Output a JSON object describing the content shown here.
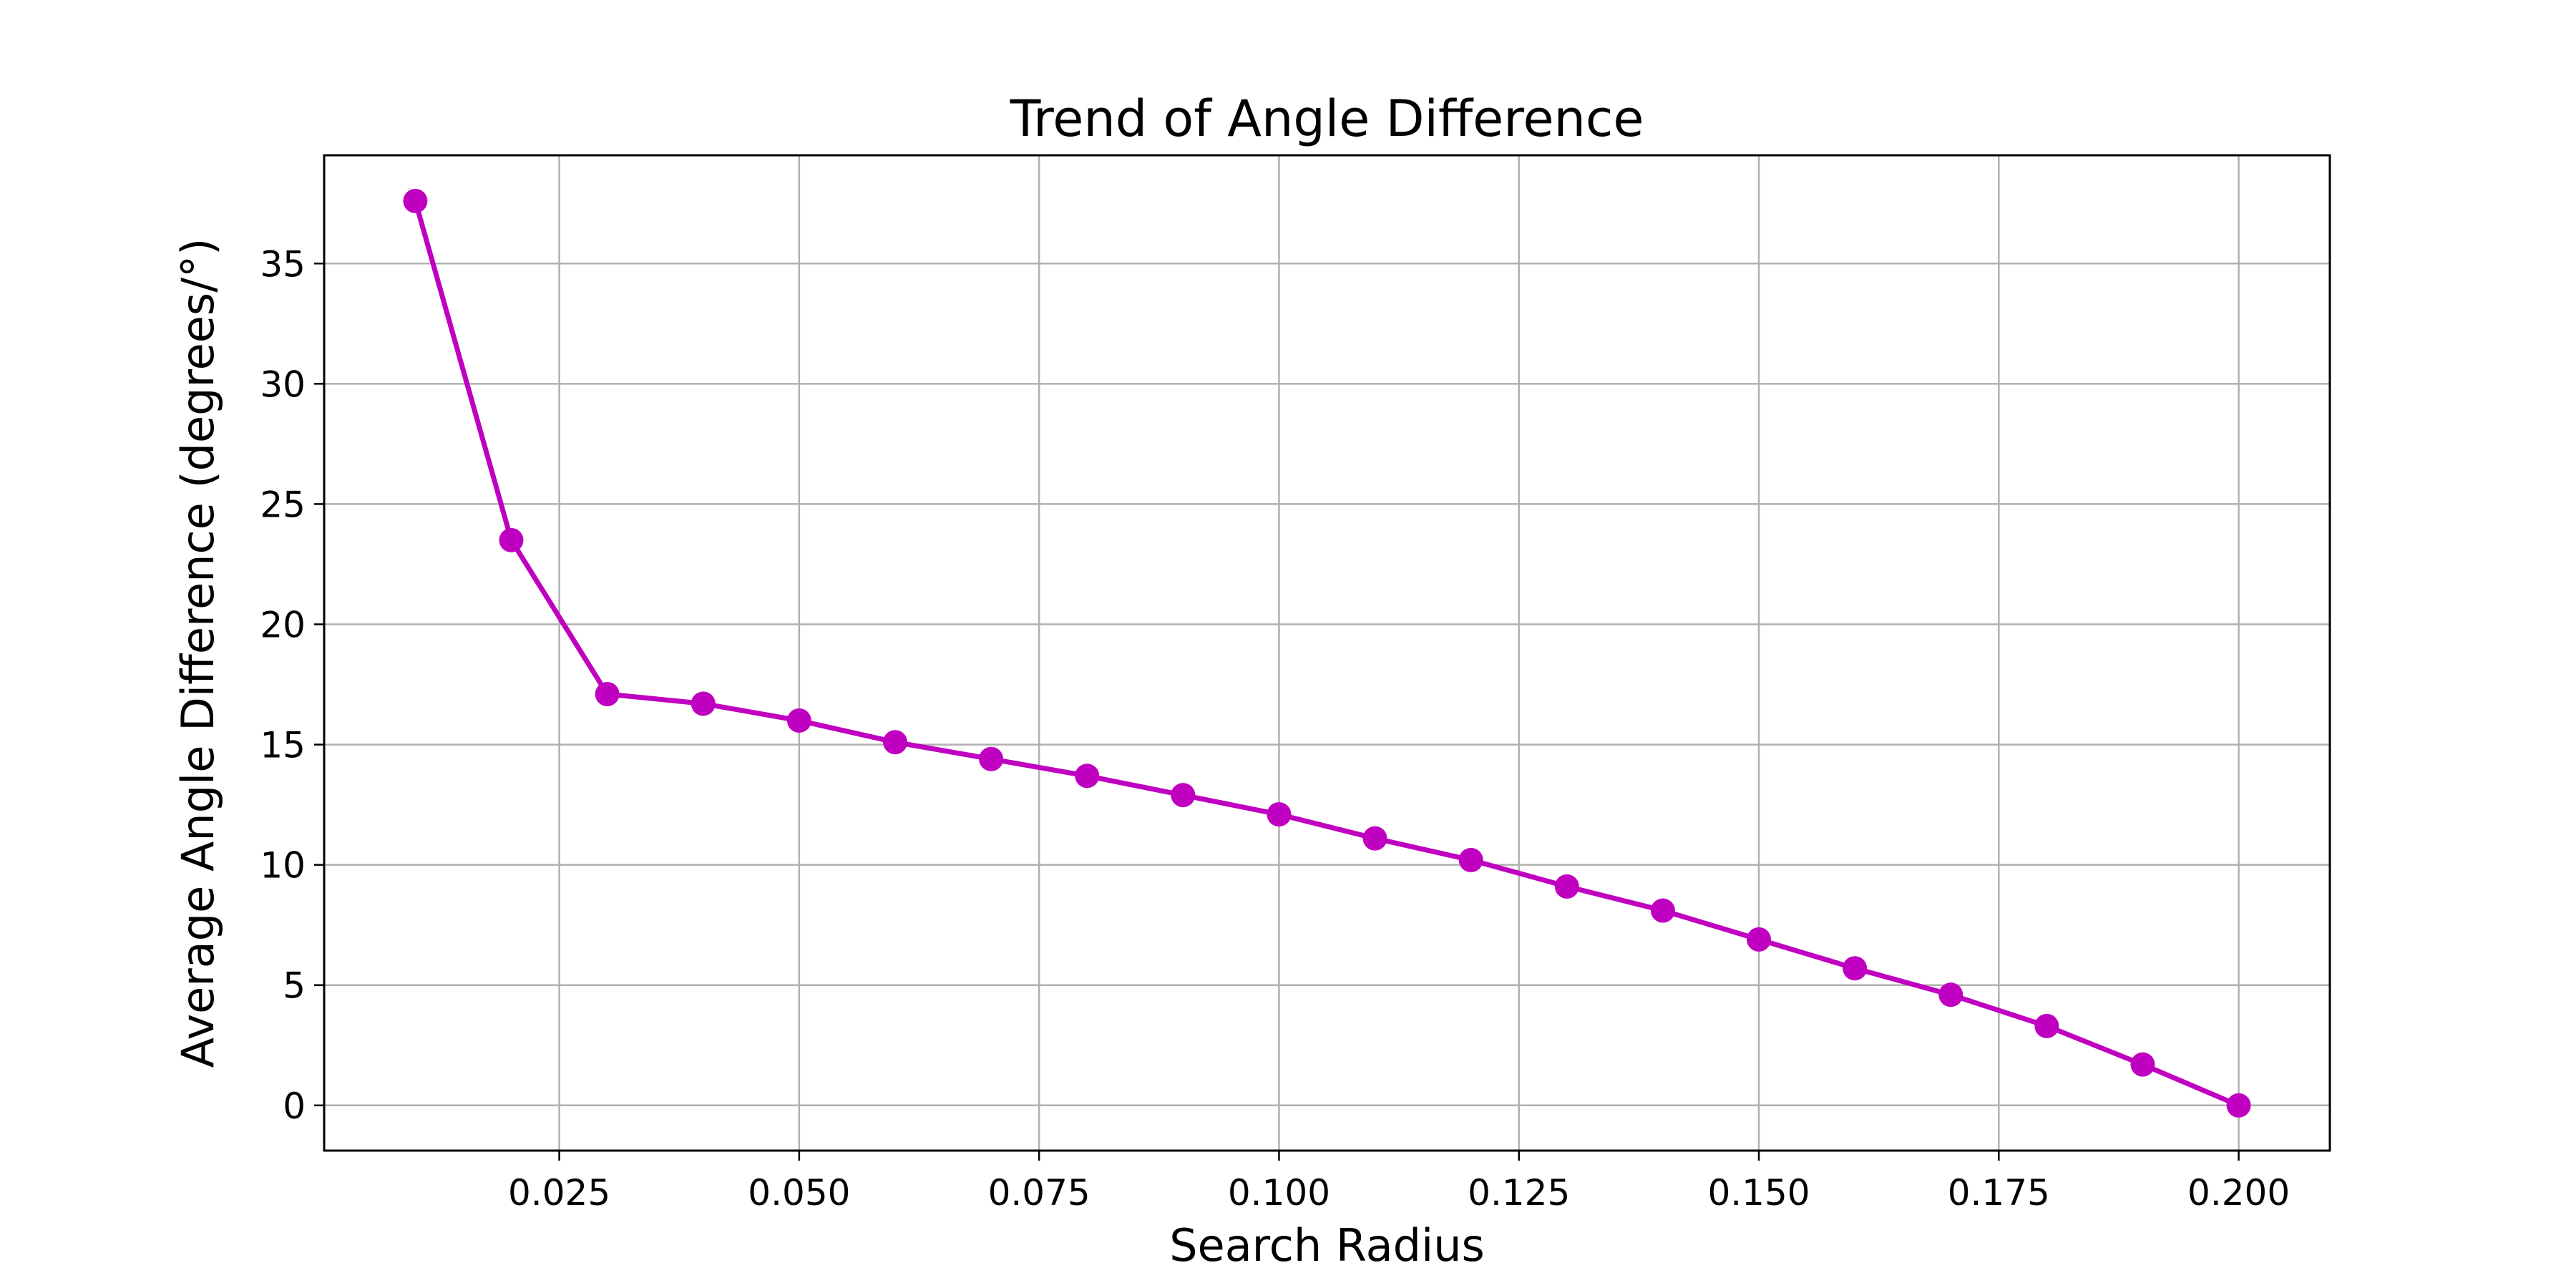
{
  "chart_data": {
    "type": "line",
    "title": "Trend of Angle Difference",
    "xlabel": "Search Radius",
    "ylabel": "Average Angle Difference (degrees/°)",
    "xlim": [
      0.0005,
      0.2095
    ],
    "ylim": [
      -1.88,
      39.5
    ],
    "xticks": [
      0.025,
      0.05,
      0.075,
      0.1,
      0.125,
      0.15,
      0.175,
      0.2
    ],
    "xtick_labels": [
      "0.025",
      "0.050",
      "0.075",
      "0.100",
      "0.125",
      "0.150",
      "0.175",
      "0.200"
    ],
    "yticks": [
      0,
      5,
      10,
      15,
      20,
      25,
      30,
      35
    ],
    "ytick_labels": [
      "0",
      "5",
      "10",
      "15",
      "20",
      "25",
      "30",
      "35"
    ],
    "grid": true,
    "series": [
      {
        "color": "#c000c0",
        "marker": "circle",
        "x": [
          0.01,
          0.02,
          0.03,
          0.04,
          0.05,
          0.06,
          0.07,
          0.08,
          0.09,
          0.1,
          0.11,
          0.12,
          0.13,
          0.14,
          0.15,
          0.16,
          0.17,
          0.18,
          0.19,
          0.2
        ],
        "y": [
          37.6,
          23.5,
          17.1,
          16.7,
          16.0,
          15.1,
          14.4,
          13.7,
          12.9,
          12.1,
          11.1,
          10.2,
          9.1,
          8.1,
          6.9,
          5.7,
          4.6,
          3.3,
          1.7,
          0.0
        ]
      }
    ]
  }
}
